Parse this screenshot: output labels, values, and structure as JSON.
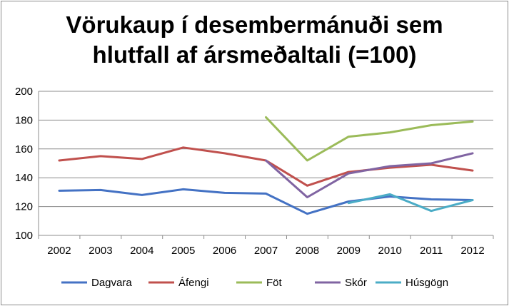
{
  "chart_data": {
    "type": "line",
    "title_line1": "Vörukaup í desembermánuði sem",
    "title_line2": "hlutfall af ársmeðaltali (=100)",
    "xlabel": "",
    "ylabel": "",
    "categories": [
      "2002",
      "2003",
      "2004",
      "2005",
      "2006",
      "2007",
      "2008",
      "2009",
      "2010",
      "2011",
      "2012"
    ],
    "ylim": [
      100,
      200
    ],
    "yticks": [
      100,
      120,
      140,
      160,
      180,
      200
    ],
    "grid": true,
    "legend_position": "bottom",
    "series": [
      {
        "name": "Dagvara",
        "color": "#4472c4",
        "values": [
          131,
          131.5,
          128,
          132,
          129.5,
          129,
          115,
          123.5,
          127,
          125,
          124.5
        ]
      },
      {
        "name": "Áfengi",
        "color": "#c0504d",
        "values": [
          152,
          155,
          153,
          161,
          157,
          152,
          134.5,
          144,
          147,
          149,
          145
        ]
      },
      {
        "name": "Föt",
        "color": "#9bbb59",
        "values": [
          null,
          null,
          null,
          null,
          null,
          182,
          152,
          168.5,
          171.5,
          176.5,
          179
        ]
      },
      {
        "name": "Skór",
        "color": "#8064a2",
        "values": [
          null,
          null,
          null,
          null,
          null,
          152,
          126.5,
          143,
          148,
          150,
          157
        ]
      },
      {
        "name": "Húsgögn",
        "color": "#4bacc6",
        "values": [
          null,
          null,
          null,
          null,
          null,
          null,
          null,
          122.5,
          128.5,
          117,
          124.5
        ]
      }
    ]
  }
}
